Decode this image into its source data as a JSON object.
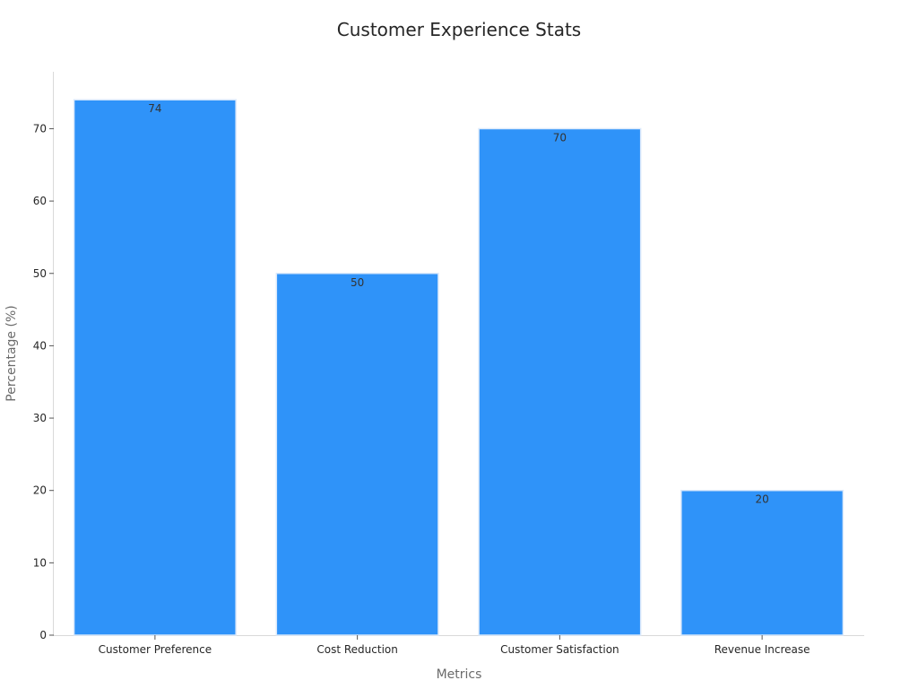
{
  "chart_data": {
    "type": "bar",
    "title": "Customer Experience Stats",
    "xlabel": "Metrics",
    "ylabel": "Percentage (%)",
    "categories": [
      "Customer Preference",
      "Cost Reduction",
      "Customer Satisfaction",
      "Revenue Increase"
    ],
    "values": [
      74,
      50,
      70,
      20
    ],
    "value_labels": [
      "74",
      "50",
      "70",
      "20"
    ],
    "ylim": [
      0,
      78
    ],
    "yticks": [
      0,
      10,
      20,
      30,
      40,
      50,
      60,
      70
    ],
    "ytick_labels": [
      "0",
      "10",
      "20",
      "30",
      "40",
      "50",
      "60",
      "70"
    ],
    "grid": false,
    "bar_color": "#2f93f9",
    "bar_edge_color": "#dbe9fb"
  }
}
